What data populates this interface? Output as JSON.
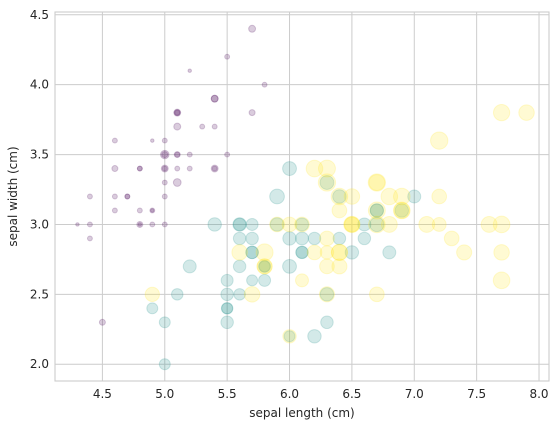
{
  "chart_data": {
    "type": "scatter",
    "title": "",
    "xlabel": "sepal length (cm)",
    "ylabel": "sepal width (cm)",
    "xlim": [
      4.12,
      8.08
    ],
    "ylim": [
      1.88,
      4.52
    ],
    "grid": true,
    "legend": "none",
    "xticks": [
      "4.5",
      "5.0",
      "5.5",
      "6.0",
      "6.5",
      "7.0",
      "7.5",
      "8.0"
    ],
    "xtick_values": [
      4.5,
      5.0,
      5.5,
      6.0,
      6.5,
      7.0,
      7.5,
      8.0
    ],
    "yticks": [
      "2.0",
      "2.5",
      "3.0",
      "3.5",
      "4.0",
      "4.5"
    ],
    "ytick_values": [
      2.0,
      2.5,
      3.0,
      3.5,
      4.0,
      4.5
    ],
    "encoding": "marker size proportional to petal width; color by species (viridis), alpha 0.2",
    "colors": [
      "#440154",
      "#21918c",
      "#fde725"
    ],
    "series": [
      {
        "class_index": 0,
        "color": "#440154",
        "points": [
          [
            5.1,
            3.5,
            0.2
          ],
          [
            4.9,
            3.0,
            0.2
          ],
          [
            4.7,
            3.2,
            0.2
          ],
          [
            4.6,
            3.1,
            0.2
          ],
          [
            5.0,
            3.6,
            0.2
          ],
          [
            5.4,
            3.9,
            0.4
          ],
          [
            4.6,
            3.4,
            0.3
          ],
          [
            5.0,
            3.4,
            0.2
          ],
          [
            4.4,
            2.9,
            0.2
          ],
          [
            4.9,
            3.1,
            0.1
          ],
          [
            5.4,
            3.7,
            0.2
          ],
          [
            4.8,
            3.4,
            0.2
          ],
          [
            4.8,
            3.0,
            0.1
          ],
          [
            4.3,
            3.0,
            0.1
          ],
          [
            5.8,
            4.0,
            0.2
          ],
          [
            5.7,
            4.4,
            0.4
          ],
          [
            5.4,
            3.9,
            0.4
          ],
          [
            5.1,
            3.5,
            0.3
          ],
          [
            5.7,
            3.8,
            0.3
          ],
          [
            5.1,
            3.8,
            0.3
          ],
          [
            5.4,
            3.4,
            0.2
          ],
          [
            5.1,
            3.7,
            0.4
          ],
          [
            4.6,
            3.6,
            0.2
          ],
          [
            5.1,
            3.3,
            0.5
          ],
          [
            4.8,
            3.4,
            0.2
          ],
          [
            5.0,
            3.0,
            0.2
          ],
          [
            5.0,
            3.4,
            0.4
          ],
          [
            5.2,
            3.5,
            0.2
          ],
          [
            5.2,
            3.4,
            0.2
          ],
          [
            4.7,
            3.2,
            0.2
          ],
          [
            4.8,
            3.1,
            0.2
          ],
          [
            5.4,
            3.4,
            0.4
          ],
          [
            5.2,
            4.1,
            0.1
          ],
          [
            5.5,
            4.2,
            0.2
          ],
          [
            4.9,
            3.1,
            0.2
          ],
          [
            5.0,
            3.2,
            0.2
          ],
          [
            5.5,
            3.5,
            0.2
          ],
          [
            4.9,
            3.6,
            0.1
          ],
          [
            4.4,
            3.0,
            0.2
          ],
          [
            5.1,
            3.4,
            0.2
          ],
          [
            5.0,
            3.5,
            0.3
          ],
          [
            4.5,
            2.3,
            0.3
          ],
          [
            4.4,
            3.2,
            0.2
          ],
          [
            5.0,
            3.5,
            0.6
          ],
          [
            5.1,
            3.8,
            0.4
          ],
          [
            4.8,
            3.0,
            0.3
          ],
          [
            5.1,
            3.8,
            0.2
          ],
          [
            4.6,
            3.2,
            0.2
          ],
          [
            5.3,
            3.7,
            0.2
          ],
          [
            5.0,
            3.3,
            0.2
          ]
        ]
      },
      {
        "class_index": 1,
        "color": "#21918c",
        "points": [
          [
            7.0,
            3.2,
            1.4
          ],
          [
            6.4,
            3.2,
            1.5
          ],
          [
            6.9,
            3.1,
            1.5
          ],
          [
            5.5,
            2.3,
            1.3
          ],
          [
            6.5,
            2.8,
            1.5
          ],
          [
            5.7,
            2.8,
            1.3
          ],
          [
            6.3,
            3.3,
            1.6
          ],
          [
            4.9,
            2.4,
            1.0
          ],
          [
            6.6,
            2.9,
            1.3
          ],
          [
            5.2,
            2.7,
            1.4
          ],
          [
            5.0,
            2.0,
            1.0
          ],
          [
            5.9,
            3.0,
            1.5
          ],
          [
            6.0,
            2.2,
            1.0
          ],
          [
            6.1,
            2.9,
            1.4
          ],
          [
            5.6,
            2.9,
            1.3
          ],
          [
            6.7,
            3.1,
            1.4
          ],
          [
            5.6,
            3.0,
            1.5
          ],
          [
            5.8,
            2.7,
            1.0
          ],
          [
            6.2,
            2.2,
            1.5
          ],
          [
            5.6,
            2.5,
            1.1
          ],
          [
            5.9,
            3.2,
            1.8
          ],
          [
            6.1,
            2.8,
            1.3
          ],
          [
            6.3,
            2.5,
            1.5
          ],
          [
            6.1,
            2.8,
            1.2
          ],
          [
            6.4,
            2.9,
            1.3
          ],
          [
            6.6,
            3.0,
            1.4
          ],
          [
            6.8,
            2.8,
            1.4
          ],
          [
            6.7,
            3.0,
            1.7
          ],
          [
            6.0,
            2.9,
            1.5
          ],
          [
            5.7,
            2.6,
            1.0
          ],
          [
            5.5,
            2.4,
            1.1
          ],
          [
            5.5,
            2.4,
            1.0
          ],
          [
            5.8,
            2.7,
            1.2
          ],
          [
            6.0,
            2.7,
            1.6
          ],
          [
            5.4,
            3.0,
            1.5
          ],
          [
            6.0,
            3.4,
            1.6
          ],
          [
            6.7,
            3.1,
            1.5
          ],
          [
            6.3,
            2.3,
            1.3
          ],
          [
            5.6,
            3.0,
            1.3
          ],
          [
            5.5,
            2.5,
            1.3
          ],
          [
            5.5,
            2.6,
            1.2
          ],
          [
            6.1,
            3.0,
            1.4
          ],
          [
            5.8,
            2.6,
            1.2
          ],
          [
            5.0,
            2.3,
            1.0
          ],
          [
            5.6,
            2.7,
            1.3
          ],
          [
            5.7,
            3.0,
            1.2
          ],
          [
            5.7,
            2.9,
            1.3
          ],
          [
            6.2,
            2.9,
            1.3
          ],
          [
            5.1,
            2.5,
            1.1
          ],
          [
            5.7,
            2.8,
            1.3
          ]
        ]
      },
      {
        "class_index": 2,
        "color": "#fde725",
        "points": [
          [
            6.3,
            3.3,
            2.5
          ],
          [
            5.8,
            2.7,
            1.9
          ],
          [
            7.1,
            3.0,
            2.1
          ],
          [
            6.3,
            2.9,
            1.8
          ],
          [
            6.5,
            3.0,
            2.2
          ],
          [
            7.6,
            3.0,
            2.1
          ],
          [
            4.9,
            2.5,
            1.7
          ],
          [
            7.3,
            2.9,
            1.8
          ],
          [
            6.7,
            2.5,
            1.8
          ],
          [
            7.2,
            3.6,
            2.5
          ],
          [
            6.5,
            3.2,
            2.0
          ],
          [
            6.4,
            2.7,
            1.9
          ],
          [
            6.8,
            3.0,
            2.1
          ],
          [
            5.7,
            2.5,
            2.0
          ],
          [
            5.8,
            2.8,
            2.4
          ],
          [
            6.4,
            3.2,
            2.3
          ],
          [
            6.5,
            3.0,
            1.8
          ],
          [
            7.7,
            3.8,
            2.2
          ],
          [
            7.7,
            2.6,
            2.3
          ],
          [
            6.0,
            2.2,
            1.5
          ],
          [
            6.9,
            3.2,
            2.3
          ],
          [
            5.6,
            2.8,
            2.0
          ],
          [
            7.7,
            2.8,
            2.0
          ],
          [
            6.3,
            2.7,
            1.8
          ],
          [
            6.7,
            3.3,
            2.1
          ],
          [
            7.2,
            3.2,
            1.8
          ],
          [
            6.2,
            2.8,
            1.8
          ],
          [
            6.1,
            3.0,
            1.8
          ],
          [
            6.4,
            2.8,
            2.1
          ],
          [
            7.2,
            3.0,
            1.6
          ],
          [
            7.4,
            2.8,
            1.9
          ],
          [
            7.9,
            3.8,
            2.0
          ],
          [
            6.4,
            2.8,
            2.2
          ],
          [
            6.3,
            2.8,
            1.5
          ],
          [
            6.1,
            2.6,
            1.4
          ],
          [
            7.7,
            3.0,
            2.3
          ],
          [
            6.3,
            3.4,
            2.4
          ],
          [
            6.4,
            3.1,
            1.8
          ],
          [
            6.0,
            3.0,
            1.8
          ],
          [
            6.9,
            3.1,
            2.1
          ],
          [
            6.7,
            3.1,
            2.4
          ],
          [
            6.9,
            3.1,
            2.3
          ],
          [
            5.8,
            2.7,
            1.9
          ],
          [
            6.8,
            3.2,
            2.3
          ],
          [
            6.7,
            3.3,
            2.5
          ],
          [
            6.7,
            3.0,
            2.3
          ],
          [
            6.3,
            2.5,
            1.9
          ],
          [
            6.5,
            3.0,
            2.0
          ],
          [
            6.2,
            3.4,
            2.3
          ],
          [
            5.9,
            3.0,
            1.8
          ]
        ]
      }
    ]
  }
}
